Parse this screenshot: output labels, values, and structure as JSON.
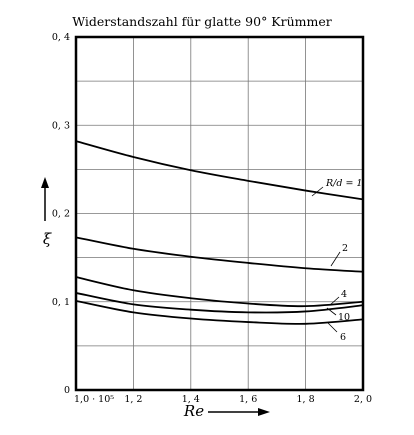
{
  "chart_data": {
    "type": "line",
    "title": "Widerstandszahl für glatte 90° Krümmer",
    "xlabel": "Re",
    "ylabel": "ξ",
    "xlim": [
      100000,
      200000
    ],
    "ylim": [
      0,
      0.4
    ],
    "x_ticks": [
      "1,0 · 10⁵",
      "1, 2",
      "1, 4",
      "1, 6",
      "1, 8",
      "2, 0"
    ],
    "y_ticks": [
      "0",
      "0, 1",
      "0, 2",
      "0, 3",
      "0, 4"
    ],
    "grid": true,
    "x": [
      100000,
      120000,
      140000,
      160000,
      180000,
      200000
    ],
    "series": [
      {
        "name": "R/d = 1",
        "values": [
          0.282,
          0.264,
          0.249,
          0.237,
          0.226,
          0.216
        ]
      },
      {
        "name": "2",
        "values": [
          0.173,
          0.16,
          0.151,
          0.144,
          0.138,
          0.134
        ]
      },
      {
        "name": "4",
        "values": [
          0.128,
          0.113,
          0.104,
          0.098,
          0.095,
          0.1
        ]
      },
      {
        "name": "10",
        "values": [
          0.11,
          0.097,
          0.091,
          0.088,
          0.089,
          0.096
        ]
      },
      {
        "name": "6",
        "values": [
          0.101,
          0.088,
          0.081,
          0.077,
          0.075,
          0.08
        ]
      }
    ],
    "labels": {
      "rd": "R/d = 1",
      "c2": "2",
      "c4": "4",
      "c10": "10",
      "c6": "6"
    }
  }
}
